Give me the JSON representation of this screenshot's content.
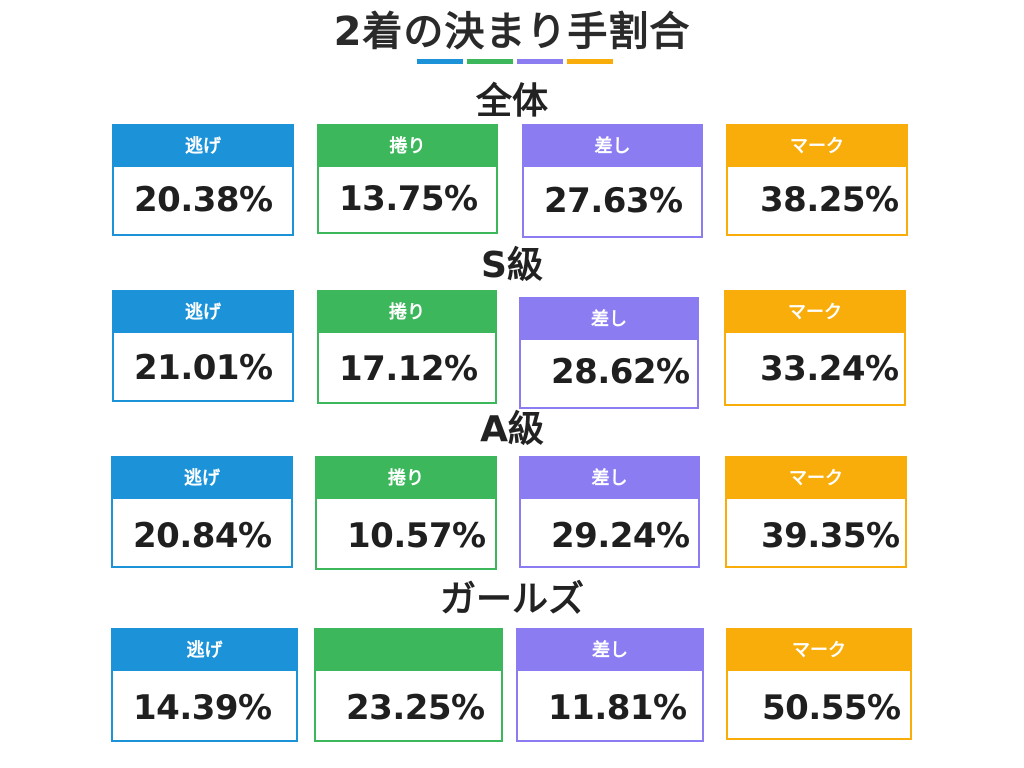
{
  "title": "2着の決まり手割合",
  "colors": {
    "nige": "#1c93d9",
    "makuri": "#3db75c",
    "sashi": "#8b7cf2",
    "mark": "#f9ad0a"
  },
  "sections": [
    {
      "title": "全体",
      "cards": [
        {
          "label": "逃げ",
          "value": "20.38%"
        },
        {
          "label": "捲り",
          "value": "13.75%"
        },
        {
          "label": "差し",
          "value": "27.63%"
        },
        {
          "label": "マーク",
          "value": "38.25%"
        }
      ]
    },
    {
      "title": "S級",
      "cards": [
        {
          "label": "逃げ",
          "value": "21.01%"
        },
        {
          "label": "捲り",
          "value": "17.12%"
        },
        {
          "label": "差し",
          "value": "28.62%"
        },
        {
          "label": "マーク",
          "value": "33.24%"
        }
      ]
    },
    {
      "title": "A級",
      "cards": [
        {
          "label": "逃げ",
          "value": "20.84%"
        },
        {
          "label": "捲り",
          "value": "10.57%"
        },
        {
          "label": "差し",
          "value": "29.24%"
        },
        {
          "label": "マーク",
          "value": "39.35%"
        }
      ]
    },
    {
      "title": "ガールズ",
      "cards": [
        {
          "label": "逃げ",
          "value": "14.39%"
        },
        {
          "label": "",
          "value": "23.25%"
        },
        {
          "label": "差し",
          "value": "11.81%"
        },
        {
          "label": "マーク",
          "value": "50.55%"
        }
      ]
    }
  ]
}
